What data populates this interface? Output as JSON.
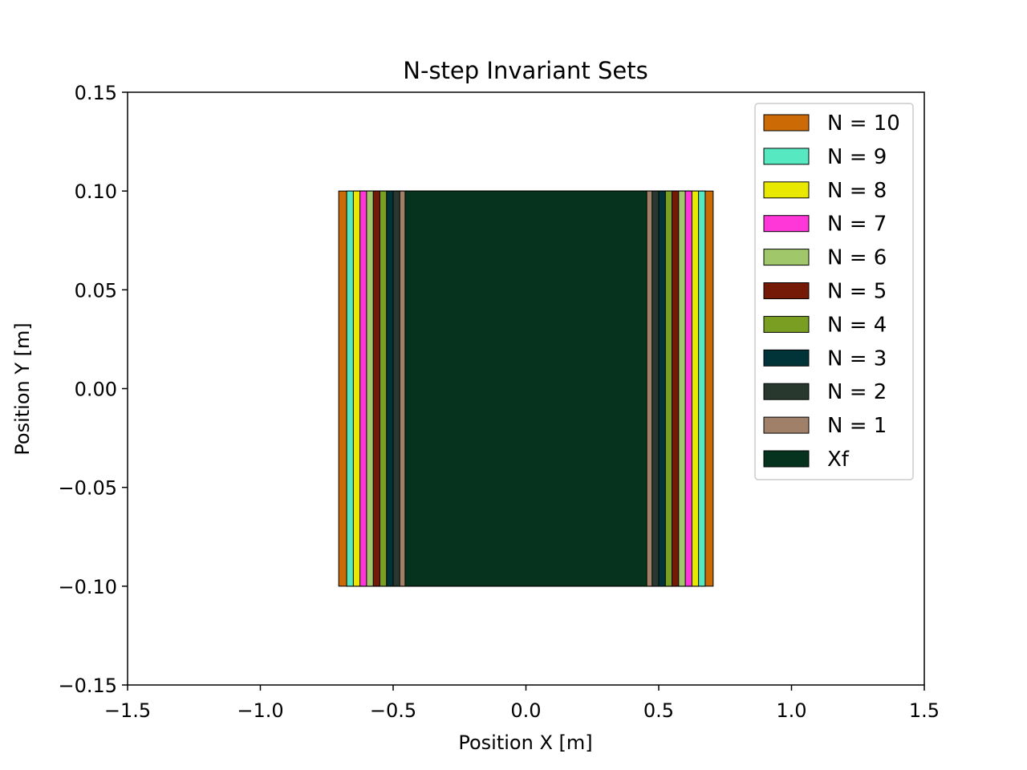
{
  "chart_data": {
    "type": "area",
    "title": "N-step Invariant Sets",
    "xlabel": "Position X [m]",
    "ylabel": "Position Y [m]",
    "xlim": [
      -1.5,
      1.5
    ],
    "ylim": [
      -0.15,
      0.15
    ],
    "xticks": [
      -1.5,
      -1.0,
      -0.5,
      0.0,
      0.5,
      1.0,
      1.5
    ],
    "xtick_labels": [
      "−1.5",
      "−1.0",
      "−0.5",
      "0.0",
      "0.5",
      "1.0",
      "1.5"
    ],
    "yticks": [
      0.15,
      0.1,
      0.05,
      0.0,
      -0.05,
      -0.1,
      -0.15
    ],
    "ytick_labels": [
      "0.15",
      "0.10",
      "0.05",
      "0.00",
      "−0.05",
      "−0.10",
      "−0.15"
    ],
    "grid": false,
    "legend_position": "top-right",
    "series": [
      {
        "name": "N = 10",
        "color": "#cc6a06",
        "x_range": [
          -0.705,
          0.705
        ],
        "y_range": [
          -0.1,
          0.1
        ]
      },
      {
        "name": "N = 9",
        "color": "#56e8c0",
        "x_range": [
          -0.675,
          0.675
        ],
        "y_range": [
          -0.1,
          0.1
        ]
      },
      {
        "name": "N = 8",
        "color": "#e8e800",
        "x_range": [
          -0.65,
          0.65
        ],
        "y_range": [
          -0.1,
          0.1
        ]
      },
      {
        "name": "N = 7",
        "color": "#ff36d8",
        "x_range": [
          -0.625,
          0.625
        ],
        "y_range": [
          -0.1,
          0.1
        ]
      },
      {
        "name": "N = 6",
        "color": "#a0c86a",
        "x_range": [
          -0.6,
          0.6
        ],
        "y_range": [
          -0.1,
          0.1
        ]
      },
      {
        "name": "N = 5",
        "color": "#741a06",
        "x_range": [
          -0.575,
          0.575
        ],
        "y_range": [
          -0.1,
          0.1
        ]
      },
      {
        "name": "N = 4",
        "color": "#7a9e22",
        "x_range": [
          -0.55,
          0.55
        ],
        "y_range": [
          -0.1,
          0.1
        ]
      },
      {
        "name": "N = 3",
        "color": "#003438",
        "x_range": [
          -0.525,
          0.525
        ],
        "y_range": [
          -0.1,
          0.1
        ]
      },
      {
        "name": "N = 2",
        "color": "#28382e",
        "x_range": [
          -0.5,
          0.5
        ],
        "y_range": [
          -0.1,
          0.1
        ]
      },
      {
        "name": "N = 1",
        "color": "#a08068",
        "x_range": [
          -0.475,
          0.475
        ],
        "y_range": [
          -0.1,
          0.1
        ]
      },
      {
        "name": "Xf",
        "color": "#06331e",
        "x_range": [
          -0.455,
          0.455
        ],
        "y_range": [
          -0.1,
          0.1
        ]
      }
    ]
  }
}
